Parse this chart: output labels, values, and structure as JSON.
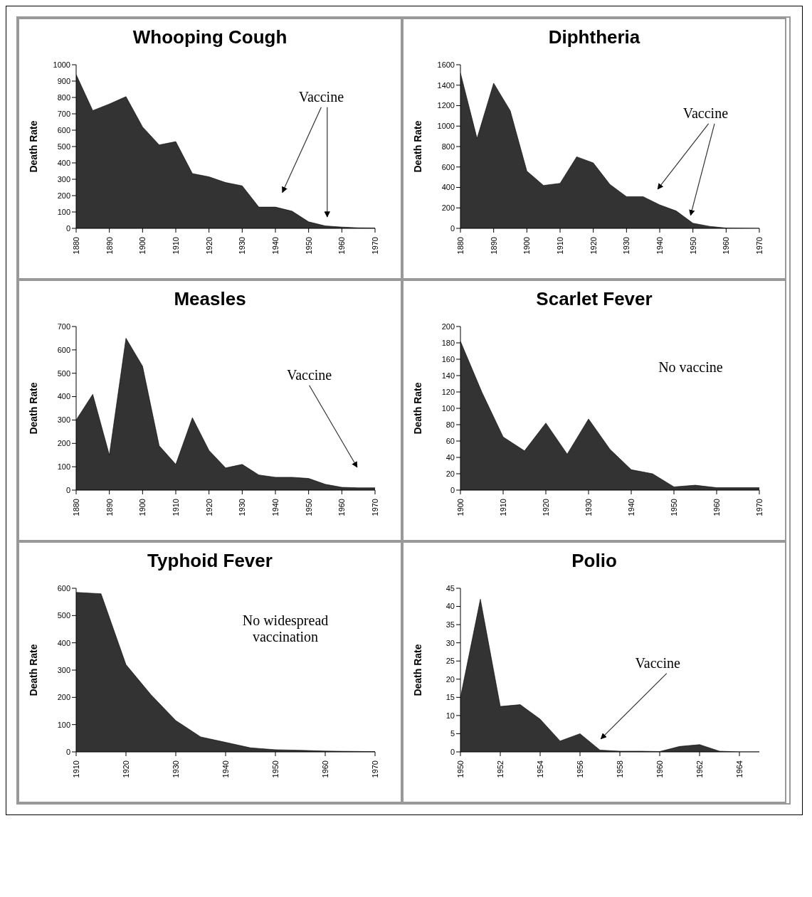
{
  "chart_data": [
    {
      "type": "area",
      "title": "Whooping Cough",
      "ylabel": "Death Rate",
      "color": "#333333",
      "x": [
        1880,
        1885,
        1890,
        1895,
        1900,
        1905,
        1910,
        1915,
        1920,
        1925,
        1930,
        1935,
        1940,
        1945,
        1950,
        1955,
        1960,
        1965,
        1970
      ],
      "values": [
        940,
        720,
        760,
        805,
        620,
        510,
        530,
        335,
        315,
        280,
        260,
        130,
        130,
        105,
        40,
        15,
        8,
        3,
        2
      ],
      "xlim": [
        1880,
        1970
      ],
      "xticks": [
        1880,
        1890,
        1900,
        1910,
        1920,
        1930,
        1940,
        1950,
        1960,
        1970
      ],
      "ylim": [
        0,
        1000
      ],
      "yticks": [
        0,
        100,
        200,
        300,
        400,
        500,
        600,
        700,
        800,
        900,
        1000
      ],
      "annotations": [
        "Vaccine"
      ]
    },
    {
      "type": "area",
      "title": "Diphtheria",
      "ylabel": "Death Rate",
      "color": "#333333",
      "x": [
        1880,
        1885,
        1890,
        1895,
        1900,
        1905,
        1910,
        1915,
        1920,
        1925,
        1930,
        1935,
        1940,
        1945,
        1950,
        1955,
        1960,
        1965,
        1970
      ],
      "values": [
        1520,
        880,
        1420,
        1150,
        560,
        420,
        440,
        700,
        640,
        430,
        310,
        310,
        230,
        170,
        50,
        20,
        3,
        1,
        0
      ],
      "xlim": [
        1880,
        1970
      ],
      "xticks": [
        1880,
        1890,
        1900,
        1910,
        1920,
        1930,
        1940,
        1950,
        1960,
        1970
      ],
      "ylim": [
        0,
        1600
      ],
      "yticks": [
        0,
        200,
        400,
        600,
        800,
        1000,
        1200,
        1400,
        1600
      ],
      "annotations": [
        "Vaccine"
      ]
    },
    {
      "type": "area",
      "title": "Measles",
      "ylabel": "Death Rate",
      "color": "#333333",
      "x": [
        1880,
        1885,
        1890,
        1895,
        1900,
        1905,
        1910,
        1915,
        1920,
        1925,
        1930,
        1935,
        1940,
        1945,
        1950,
        1955,
        1960,
        1965,
        1970
      ],
      "values": [
        300,
        410,
        150,
        650,
        530,
        190,
        110,
        310,
        170,
        95,
        110,
        65,
        55,
        55,
        50,
        25,
        12,
        10,
        10
      ],
      "xlim": [
        1880,
        1970
      ],
      "xticks": [
        1880,
        1890,
        1900,
        1910,
        1920,
        1930,
        1940,
        1950,
        1960,
        1970
      ],
      "ylim": [
        0,
        700
      ],
      "yticks": [
        0,
        100,
        200,
        300,
        400,
        500,
        600,
        700
      ],
      "annotations": [
        "Vaccine"
      ]
    },
    {
      "type": "area",
      "title": "Scarlet Fever",
      "ylabel": "Death Rate",
      "color": "#333333",
      "x": [
        1900,
        1905,
        1910,
        1915,
        1920,
        1925,
        1930,
        1935,
        1940,
        1945,
        1950,
        1955,
        1960,
        1965,
        1970
      ],
      "values": [
        182,
        120,
        65,
        48,
        82,
        44,
        87,
        50,
        25,
        20,
        4,
        6,
        3,
        3,
        3
      ],
      "xlim": [
        1900,
        1970
      ],
      "xticks": [
        1900,
        1910,
        1920,
        1930,
        1940,
        1950,
        1960,
        1970
      ],
      "ylim": [
        0,
        200
      ],
      "yticks": [
        0,
        20,
        40,
        60,
        80,
        100,
        120,
        140,
        160,
        180,
        200
      ],
      "annotations": [
        "No vaccine"
      ]
    },
    {
      "type": "area",
      "title": "Typhoid Fever",
      "ylabel": "Death Rate",
      "color": "#333333",
      "x": [
        1910,
        1915,
        1920,
        1925,
        1930,
        1935,
        1940,
        1945,
        1950,
        1955,
        1960,
        1965,
        1970
      ],
      "values": [
        585,
        580,
        320,
        210,
        115,
        55,
        35,
        15,
        8,
        6,
        3,
        2,
        1
      ],
      "xlim": [
        1910,
        1970
      ],
      "xticks": [
        1910,
        1920,
        1930,
        1940,
        1950,
        1960,
        1970
      ],
      "ylim": [
        0,
        600
      ],
      "yticks": [
        0,
        100,
        200,
        300,
        400,
        500,
        600
      ],
      "annotations": [
        "No widespread vaccination"
      ]
    },
    {
      "type": "area",
      "title": "Polio",
      "ylabel": "Death Rate",
      "color": "#333333",
      "x": [
        1950,
        1951,
        1952,
        1953,
        1954,
        1955,
        1956,
        1957,
        1958,
        1959,
        1960,
        1961,
        1962,
        1963,
        1964,
        1965
      ],
      "values": [
        15,
        42,
        12.5,
        13,
        9,
        3,
        5,
        0.5,
        0.2,
        0.2,
        0.1,
        1.5,
        2,
        0.2,
        0,
        0
      ],
      "xlim": [
        1950,
        1965
      ],
      "xticks": [
        1950,
        1952,
        1954,
        1956,
        1958,
        1960,
        1962,
        1964
      ],
      "ylim": [
        0,
        45
      ],
      "yticks": [
        0,
        5,
        10,
        15,
        20,
        25,
        30,
        35,
        40,
        45
      ],
      "annotations": [
        "Vaccine"
      ]
    }
  ]
}
